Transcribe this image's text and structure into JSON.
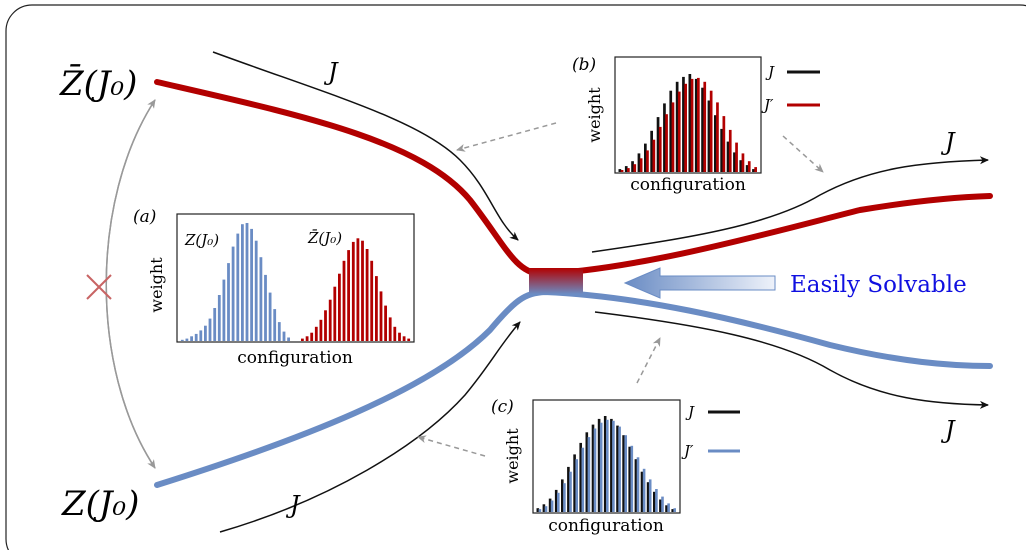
{
  "labels": {
    "zbar_top": "Z̄(J₀)",
    "z_bottom": "Z(J₀)",
    "j_top": "J",
    "j_bottom": "J",
    "j_right_top": "J",
    "j_right_bottom": "J",
    "easily_solvable": "Easily Solvable"
  },
  "colors": {
    "red": "#b20000",
    "blue": "#6a8cc4",
    "blue_text": "#1010e0",
    "gray": "#999999",
    "cross": "#c86464"
  },
  "panel_a": {
    "tag": "(a)",
    "ylabel": "weight",
    "xlabel": "configuration",
    "blue_label": "Z(J₀)",
    "red_label": "Z̄(J₀)",
    "blue_values": [
      1,
      2,
      4,
      6,
      9,
      13,
      19,
      28,
      39,
      52,
      66,
      80,
      91,
      99,
      100,
      95,
      85,
      71,
      56,
      41,
      27,
      16,
      8,
      3
    ],
    "red_values": [
      2,
      4,
      7,
      12,
      18,
      26,
      35,
      46,
      57,
      68,
      77,
      84,
      87,
      85,
      78,
      68,
      55,
      42,
      30,
      20,
      12,
      7,
      4,
      2
    ]
  },
  "panel_b": {
    "tag": "(b)",
    "ylabel": "weight",
    "xlabel": "configuration",
    "legend": [
      {
        "label": "J",
        "color": "#111111"
      },
      {
        "label": "J′",
        "color": "#b20000"
      }
    ],
    "values_J": [
      3,
      6,
      11,
      19,
      29,
      42,
      56,
      70,
      83,
      92,
      97,
      100,
      95,
      86,
      73,
      58,
      44,
      31,
      20,
      12,
      7,
      3
    ],
    "values_Jp": [
      2,
      4,
      8,
      14,
      22,
      33,
      46,
      59,
      71,
      82,
      90,
      95,
      96,
      92,
      83,
      71,
      57,
      43,
      30,
      19,
      11,
      5
    ]
  },
  "panel_c": {
    "tag": "(c)",
    "ylabel": "weight",
    "xlabel": "configuration",
    "legend": [
      {
        "label": "J",
        "color": "#111111"
      },
      {
        "label": "J′",
        "color": "#6a8cc4"
      }
    ],
    "values_J": [
      4,
      8,
      14,
      23,
      34,
      47,
      60,
      72,
      83,
      91,
      97,
      100,
      97,
      90,
      80,
      68,
      55,
      42,
      31,
      21,
      13,
      7,
      3
    ],
    "values_Jp": [
      3,
      6,
      12,
      20,
      30,
      42,
      55,
      67,
      78,
      87,
      93,
      96,
      95,
      89,
      80,
      69,
      57,
      45,
      34,
      24,
      16,
      9,
      4
    ]
  }
}
